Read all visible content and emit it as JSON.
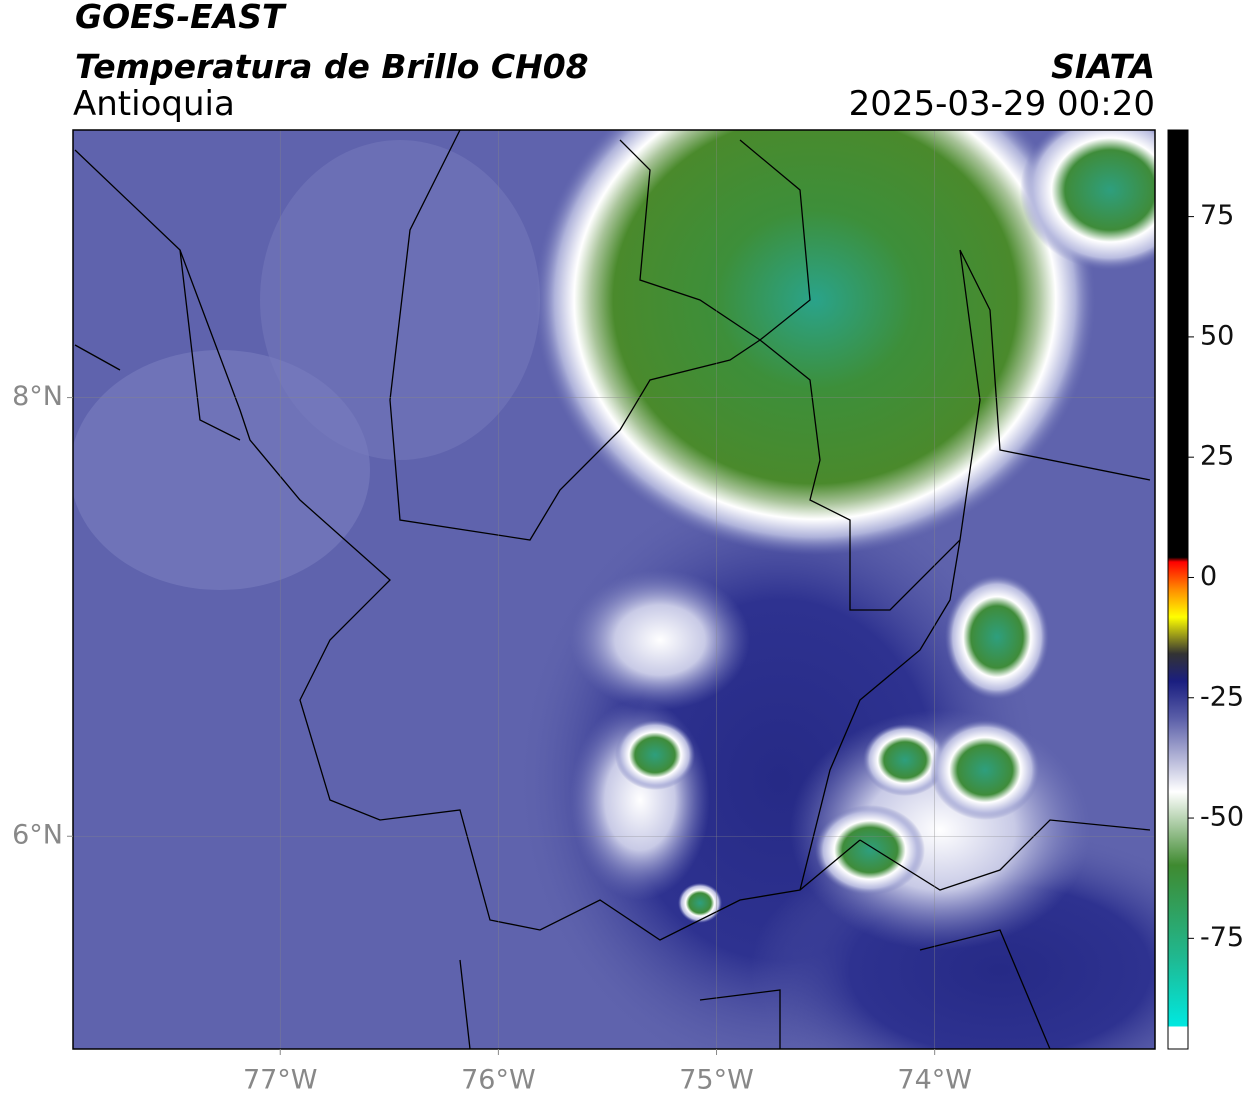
{
  "header": {
    "satellite": "GOES-EAST",
    "product": "Temperatura de Brillo CH08",
    "region": "Antioquia",
    "agency": "SIATA",
    "datetime": "2025-03-29 00:20"
  },
  "map": {
    "xlim": [
      -77.95,
      -72.99
    ],
    "ylim": [
      5.03,
      9.22
    ],
    "xticks": [
      {
        "value": -77,
        "label": "77°W"
      },
      {
        "value": -76,
        "label": "76°W"
      },
      {
        "value": -75,
        "label": "75°W"
      },
      {
        "value": -74,
        "label": "74°W"
      }
    ],
    "yticks": [
      {
        "value": 8,
        "label": "8°N"
      },
      {
        "value": 6,
        "label": "6°N"
      }
    ],
    "grid": true
  },
  "colorbar": {
    "lim": [
      -98,
      93
    ],
    "ticks": [
      75,
      50,
      25,
      0,
      -25,
      -50,
      -75
    ]
  }
}
